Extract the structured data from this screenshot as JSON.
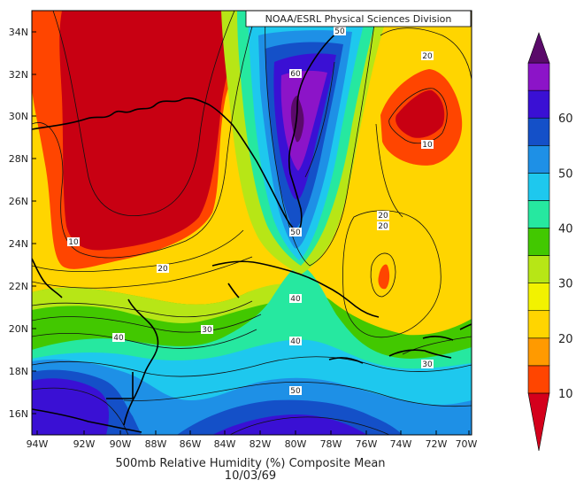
{
  "credit": "NOAA/ESRL Physical Sciences Division",
  "title": "500mb Relative Humidity (%) Composite Mean",
  "date": "10/03/69",
  "lat_labels": [
    "34N",
    "32N",
    "30N",
    "28N",
    "26N",
    "24N",
    "22N",
    "20N",
    "18N",
    "16N"
  ],
  "lon_labels": [
    "94W",
    "92W",
    "90W",
    "88W",
    "86W",
    "84W",
    "82W",
    "80W",
    "78W",
    "76W",
    "74W",
    "72W",
    "70W"
  ],
  "colorbar": {
    "labels": [
      "10",
      "20",
      "30",
      "40",
      "50",
      "60"
    ],
    "colors": [
      "#d4001c",
      "#ff4500",
      "#ff9a00",
      "#ffd500",
      "#f2f200",
      "#b7e616",
      "#42c800",
      "#26e8a0",
      "#1ec8ee",
      "#1e90e6",
      "#1450c8",
      "#3a10d4",
      "#8c14c8",
      "#5a0a6a"
    ]
  },
  "contour_labels": [
    {
      "text": "50"
    },
    {
      "text": "60"
    },
    {
      "text": "20"
    },
    {
      "text": "10"
    },
    {
      "text": "20"
    },
    {
      "text": "20"
    },
    {
      "text": "50"
    },
    {
      "text": "10"
    },
    {
      "text": "20"
    },
    {
      "text": "40"
    },
    {
      "text": "30"
    },
    {
      "text": "40"
    },
    {
      "text": "40"
    },
    {
      "text": "50"
    },
    {
      "text": "30"
    }
  ]
}
